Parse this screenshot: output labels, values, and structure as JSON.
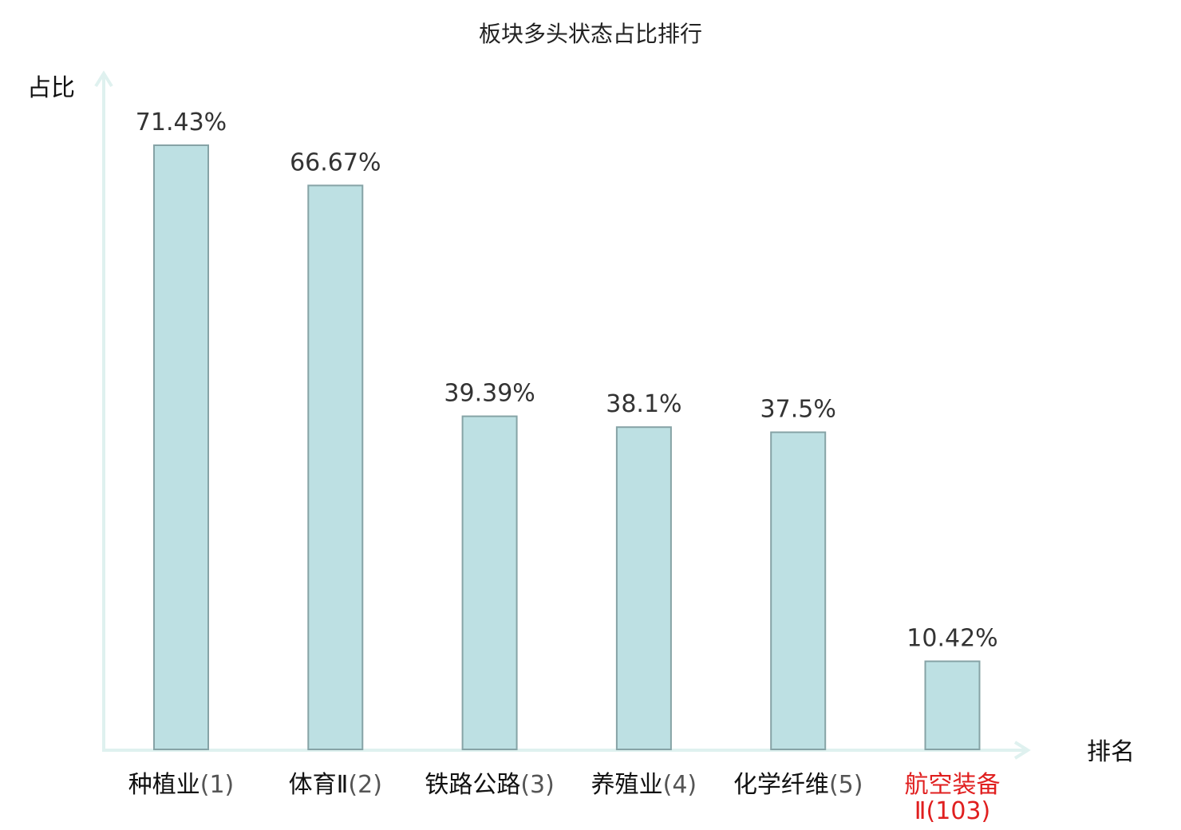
{
  "chart_data": {
    "type": "bar",
    "title": "板块多头状态占比排行",
    "xlabel": "排名",
    "ylabel": "占比",
    "ylim": [
      0,
      80
    ],
    "grid": false,
    "legend": "none",
    "categories": [
      {
        "name": "种植业",
        "rank": "(1)",
        "highlight": false
      },
      {
        "name": "体育Ⅱ",
        "rank": "(2)",
        "highlight": false
      },
      {
        "name": "铁路公路",
        "rank": "(3)",
        "highlight": false
      },
      {
        "name": "养殖业",
        "rank": "(4)",
        "highlight": false
      },
      {
        "name": "化学纤维",
        "rank": "(5)",
        "highlight": false
      },
      {
        "name": "航空装备",
        "rank": "Ⅱ(103)",
        "highlight": true
      }
    ],
    "values": [
      71.43,
      66.67,
      39.39,
      38.1,
      37.5,
      10.42
    ],
    "value_labels": [
      "71.43%",
      "66.67%",
      "39.39%",
      "38.1%",
      "37.5%",
      "10.42%"
    ]
  },
  "colors": {
    "bar_fill": "#bde0e3",
    "bar_stroke": "#86a3a6",
    "axis": "#dff1ef",
    "text": "#111111",
    "rank_text": "#555555",
    "highlight": "#e01f1f"
  }
}
